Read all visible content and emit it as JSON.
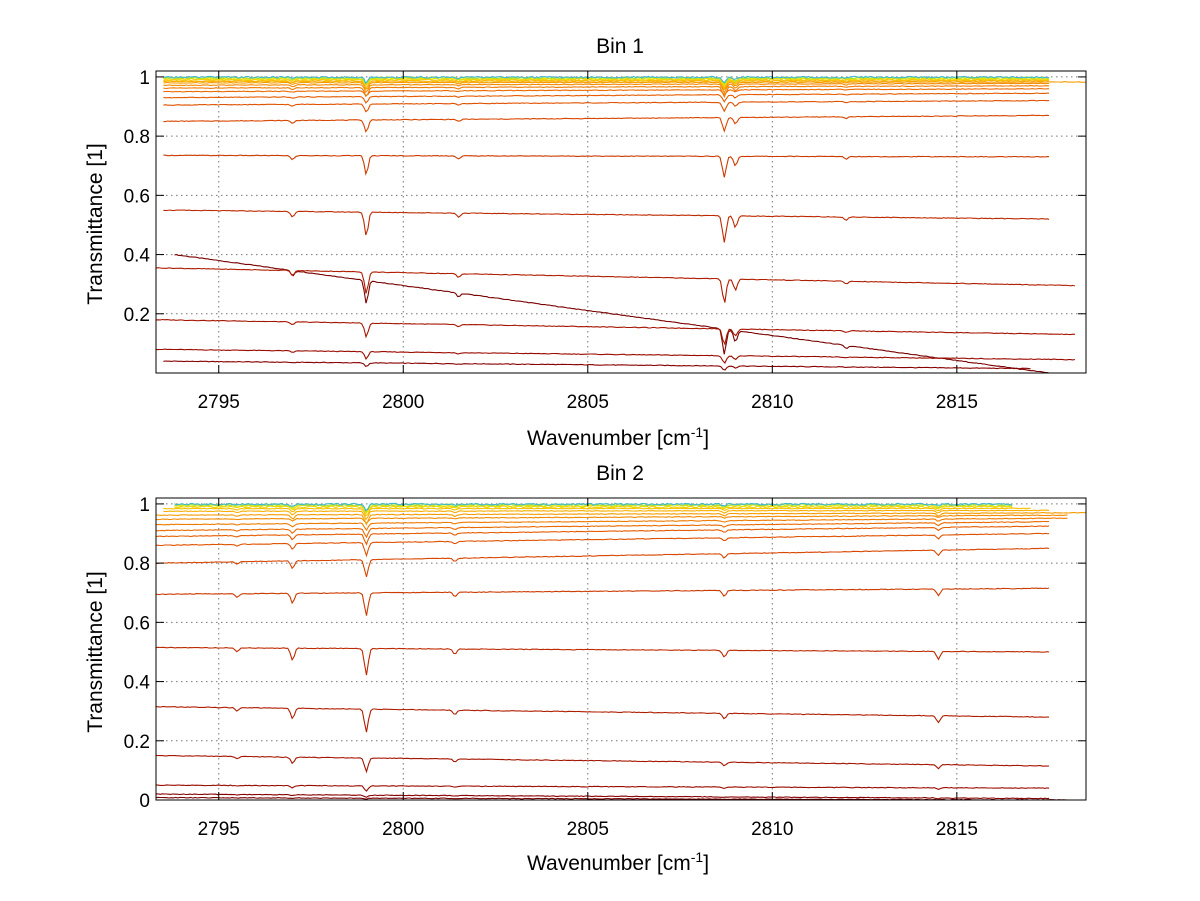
{
  "chart_data": [
    {
      "type": "line",
      "title": "Bin 1",
      "xlabel": "Wavenumber [cm",
      "xlabel_superscript": "-1",
      "xlabel_suffix": "]",
      "ylabel": "Transmittance [1]",
      "xlim": [
        2793.3,
        2818.5
      ],
      "ylim": [
        0.0,
        1.02
      ],
      "xticks": [
        2795,
        2800,
        2805,
        2810,
        2815
      ],
      "xtick_labels": [
        "2795",
        "2800",
        "2805",
        "2810",
        "2815"
      ],
      "yticks": [
        0.2,
        0.4,
        0.6,
        0.8,
        1.0
      ],
      "ytick_labels": [
        "0.2",
        "0.4",
        "0.6",
        "0.8",
        "1"
      ],
      "grid": true,
      "legend": "none",
      "absorption_lines": [
        {
          "x": 2797.0,
          "strength": 0.2
        },
        {
          "x": 2799.0,
          "strength": 0.9
        },
        {
          "x": 2801.5,
          "strength": 0.15
        },
        {
          "x": 2808.7,
          "strength": 1.0
        },
        {
          "x": 2809.0,
          "strength": 0.45
        },
        {
          "x": 2812.0,
          "strength": 0.12
        }
      ],
      "series": [
        {
          "start": 0.4,
          "end": 0.0,
          "x_start": 2793.8,
          "x_end": 2817.5,
          "color": "#7a0000"
        },
        {
          "start": 0.04,
          "end": 0.015,
          "x_start": 2793.5,
          "x_end": 2817.0,
          "color": "#880000"
        },
        {
          "start": 0.08,
          "end": 0.045,
          "x_start": 2793.3,
          "x_end": 2818.2,
          "color": "#9a0b00"
        },
        {
          "start": 0.18,
          "end": 0.13,
          "x_start": 2793.3,
          "x_end": 2818.2,
          "color": "#a51500"
        },
        {
          "start": 0.355,
          "end": 0.295,
          "x_start": 2793.3,
          "x_end": 2818.2,
          "color": "#b01e00"
        },
        {
          "start": 0.55,
          "end": 0.52,
          "x_start": 2793.5,
          "x_end": 2817.5,
          "color": "#bd2a00"
        },
        {
          "start": 0.735,
          "end": 0.73,
          "x_start": 2793.5,
          "x_end": 2817.5,
          "color": "#cc3a00"
        },
        {
          "start": 0.85,
          "end": 0.87,
          "x_start": 2793.5,
          "x_end": 2817.5,
          "color": "#d84600"
        },
        {
          "start": 0.905,
          "end": 0.92,
          "x_start": 2793.5,
          "x_end": 2817.5,
          "color": "#e05200"
        },
        {
          "start": 0.93,
          "end": 0.945,
          "x_start": 2793.5,
          "x_end": 2817.5,
          "color": "#e65c00"
        },
        {
          "start": 0.95,
          "end": 0.96,
          "x_start": 2793.5,
          "x_end": 2817.5,
          "color": "#ec6a00"
        },
        {
          "start": 0.962,
          "end": 0.97,
          "x_start": 2793.5,
          "x_end": 2817.5,
          "color": "#f07a00"
        },
        {
          "start": 0.972,
          "end": 0.978,
          "x_start": 2793.5,
          "x_end": 2817.5,
          "color": "#f48a00"
        },
        {
          "start": 0.98,
          "end": 0.983,
          "x_start": 2793.5,
          "x_end": 2818.5,
          "color": "#f69c00"
        },
        {
          "start": 0.985,
          "end": 0.987,
          "x_start": 2793.5,
          "x_end": 2817.5,
          "color": "#f8ae00"
        },
        {
          "start": 0.989,
          "end": 0.99,
          "x_start": 2793.5,
          "x_end": 2817.5,
          "color": "#f8c000"
        },
        {
          "start": 0.992,
          "end": 0.993,
          "x_start": 2793.5,
          "x_end": 2817.5,
          "color": "#f2d400"
        },
        {
          "start": 0.995,
          "end": 0.995,
          "x_start": 2793.5,
          "x_end": 2817.5,
          "color": "#e2e400"
        },
        {
          "start": 0.997,
          "end": 0.997,
          "x_start": 2793.5,
          "x_end": 2817.5,
          "color": "#a8e040"
        },
        {
          "start": 0.999,
          "end": 0.999,
          "x_start": 2793.5,
          "x_end": 2817.5,
          "color": "#40b8d0"
        }
      ]
    },
    {
      "type": "line",
      "title": "Bin 2",
      "xlabel": "Wavenumber [cm",
      "xlabel_superscript": "-1",
      "xlabel_suffix": "]",
      "ylabel": "Transmittance [1]",
      "xlim": [
        2793.3,
        2818.5
      ],
      "ylim": [
        0.0,
        1.02
      ],
      "xticks": [
        2795,
        2800,
        2805,
        2810,
        2815
      ],
      "xtick_labels": [
        "2795",
        "2800",
        "2805",
        "2810",
        "2815"
      ],
      "yticks": [
        0.0,
        0.2,
        0.4,
        0.6,
        0.8,
        1.0
      ],
      "ytick_labels": [
        "0",
        "0.2",
        "0.4",
        "0.6",
        "0.8",
        "1"
      ],
      "grid": true,
      "legend": "none",
      "absorption_lines": [
        {
          "x": 2795.5,
          "strength": 0.15
        },
        {
          "x": 2797.0,
          "strength": 0.45
        },
        {
          "x": 2799.0,
          "strength": 1.0
        },
        {
          "x": 2801.4,
          "strength": 0.2
        },
        {
          "x": 2808.7,
          "strength": 0.25
        },
        {
          "x": 2814.5,
          "strength": 0.3
        }
      ],
      "series": [
        {
          "start": 0.008,
          "end": 0.0,
          "x_start": 2793.3,
          "x_end": 2818.0,
          "color": "#7a0000"
        },
        {
          "start": 0.02,
          "end": 0.005,
          "x_start": 2793.3,
          "x_end": 2817.5,
          "color": "#880000"
        },
        {
          "start": 0.05,
          "end": 0.04,
          "x_start": 2793.3,
          "x_end": 2817.5,
          "color": "#9a0b00"
        },
        {
          "start": 0.15,
          "end": 0.115,
          "x_start": 2793.3,
          "x_end": 2817.5,
          "color": "#a51500"
        },
        {
          "start": 0.315,
          "end": 0.28,
          "x_start": 2793.3,
          "x_end": 2817.5,
          "color": "#b01e00"
        },
        {
          "start": 0.515,
          "end": 0.5,
          "x_start": 2793.3,
          "x_end": 2817.5,
          "color": "#bd2a00"
        },
        {
          "start": 0.695,
          "end": 0.715,
          "x_start": 2793.3,
          "x_end": 2817.5,
          "color": "#cc3a00"
        },
        {
          "start": 0.8,
          "end": 0.85,
          "x_start": 2793.3,
          "x_end": 2817.5,
          "color": "#d84600"
        },
        {
          "start": 0.86,
          "end": 0.9,
          "x_start": 2793.3,
          "x_end": 2817.5,
          "color": "#e05200"
        },
        {
          "start": 0.89,
          "end": 0.925,
          "x_start": 2793.3,
          "x_end": 2817.5,
          "color": "#e65c00"
        },
        {
          "start": 0.91,
          "end": 0.94,
          "x_start": 2793.3,
          "x_end": 2817.5,
          "color": "#ec6a00"
        },
        {
          "start": 0.93,
          "end": 0.952,
          "x_start": 2793.3,
          "x_end": 2818.0,
          "color": "#f07a00"
        },
        {
          "start": 0.948,
          "end": 0.962,
          "x_start": 2793.3,
          "x_end": 2818.0,
          "color": "#f48a00"
        },
        {
          "start": 0.962,
          "end": 0.97,
          "x_start": 2793.3,
          "x_end": 2818.5,
          "color": "#f69c00"
        },
        {
          "start": 0.975,
          "end": 0.978,
          "x_start": 2793.5,
          "x_end": 2817.5,
          "color": "#f8ae00"
        },
        {
          "start": 0.984,
          "end": 0.985,
          "x_start": 2793.5,
          "x_end": 2817.0,
          "color": "#f8c000"
        },
        {
          "start": 0.99,
          "end": 0.99,
          "x_start": 2793.8,
          "x_end": 2816.5,
          "color": "#f2d400"
        },
        {
          "start": 0.994,
          "end": 0.994,
          "x_start": 2793.8,
          "x_end": 2816.5,
          "color": "#e2e400"
        },
        {
          "start": 0.997,
          "end": 0.997,
          "x_start": 2793.8,
          "x_end": 2816.5,
          "color": "#a8e040"
        },
        {
          "start": 0.999,
          "end": 0.999,
          "x_start": 2793.8,
          "x_end": 2816.5,
          "color": "#40b8d0"
        }
      ]
    }
  ]
}
